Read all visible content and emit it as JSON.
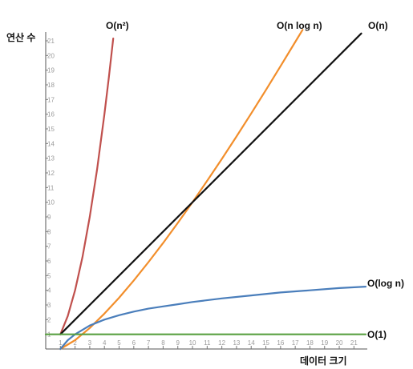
{
  "chart_data": {
    "type": "line",
    "title": "",
    "xlabel": "데이터 크기",
    "ylabel": "연산 수",
    "xlim": [
      0,
      21.8
    ],
    "ylim": [
      0,
      21.6
    ],
    "x_ticks": [
      1,
      2,
      3,
      4,
      5,
      6,
      7,
      8,
      9,
      10,
      11,
      12,
      13,
      14,
      15,
      16,
      17,
      18,
      19,
      20,
      21
    ],
    "y_ticks": [
      1,
      2,
      3,
      4,
      5,
      6,
      7,
      8,
      9,
      10,
      11,
      12,
      13,
      14,
      15,
      16,
      17,
      18,
      19,
      20,
      21
    ],
    "grid": false,
    "legend": "inline labels at line ends",
    "series": [
      {
        "name": "O(n²)",
        "color": "#c0504d",
        "x": [
          1,
          1.5,
          2,
          2.5,
          3,
          3.5,
          4,
          4.3,
          4.6
        ],
        "y": [
          1,
          2.25,
          4,
          6.25,
          9,
          12.25,
          16,
          18.49,
          21.16
        ]
      },
      {
        "name": "O(n log n)",
        "color": "#f28e2b",
        "x": [
          1,
          2,
          3,
          4,
          5,
          6,
          7,
          8,
          9,
          10,
          11,
          12,
          13,
          14,
          15,
          16,
          17,
          17.5
        ],
        "y": [
          0,
          0.6,
          1.43,
          2.41,
          3.49,
          4.67,
          5.92,
          7.22,
          8.59,
          10.0,
          11.46,
          12.95,
          14.48,
          16.05,
          17.64,
          19.27,
          20.92,
          21.75
        ]
      },
      {
        "name": "O(n)",
        "color": "#111111",
        "x": [
          1,
          21.5
        ],
        "y": [
          1,
          21.5
        ]
      },
      {
        "name": "O(log n)",
        "color": "#4a7ebb",
        "x": [
          1,
          1.5,
          2,
          3,
          4,
          5,
          6,
          7,
          8,
          9,
          10,
          12,
          14,
          16,
          18,
          20,
          21.8
        ],
        "y": [
          0,
          0.6,
          1.0,
          1.6,
          2.0,
          2.3,
          2.55,
          2.75,
          2.9,
          3.05,
          3.2,
          3.45,
          3.65,
          3.85,
          4.0,
          4.15,
          4.25
        ]
      },
      {
        "name": "O(1)",
        "color": "#5aa042",
        "x": [
          0,
          21.8
        ],
        "y": [
          1,
          1
        ]
      }
    ]
  }
}
